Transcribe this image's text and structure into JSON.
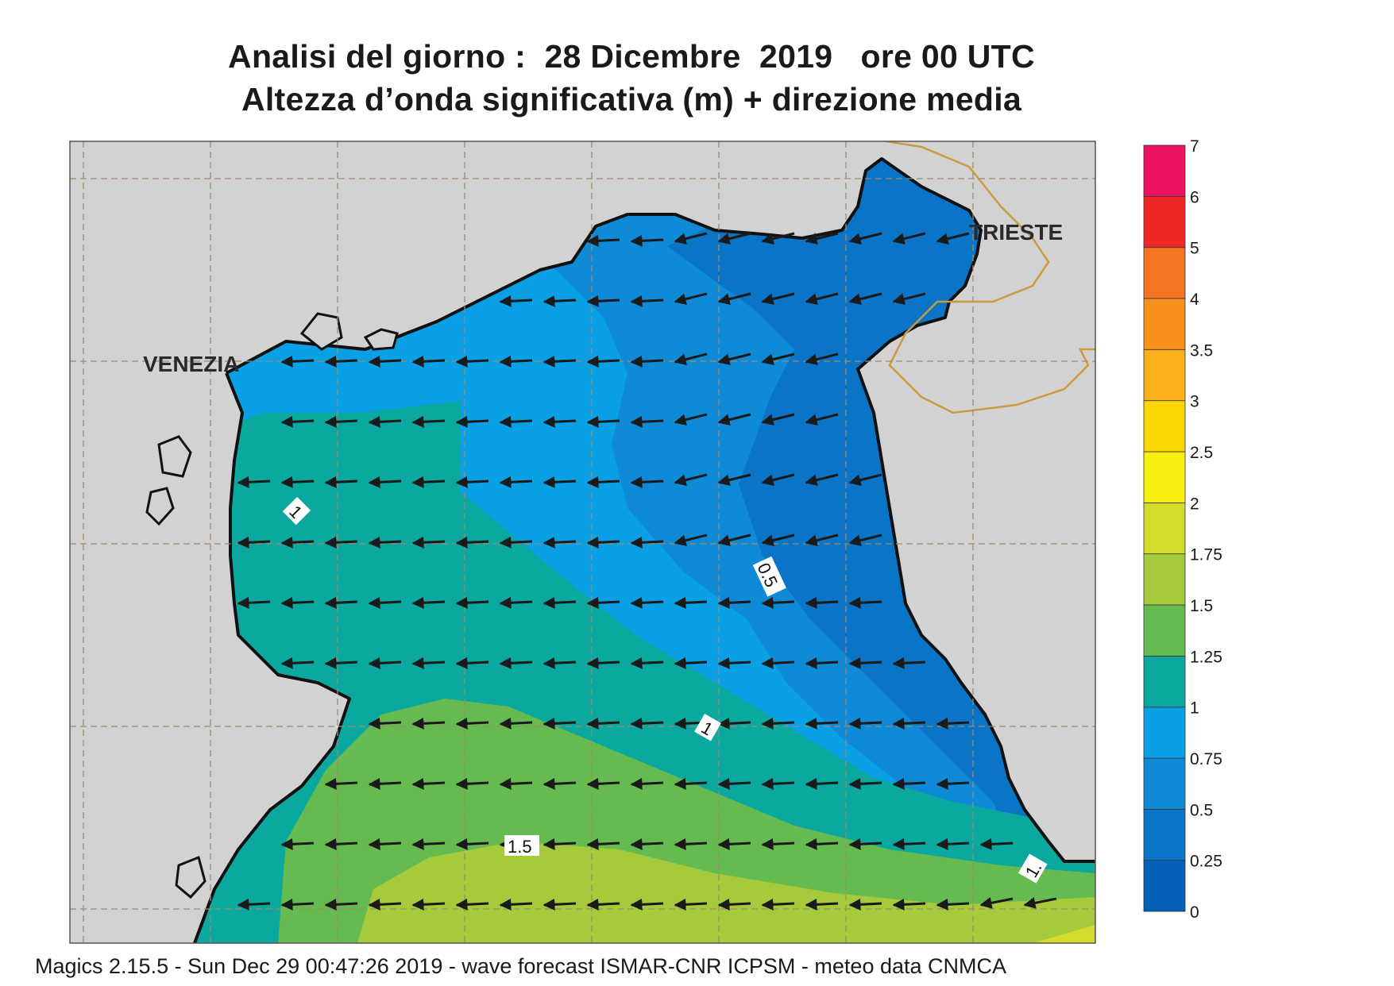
{
  "title": {
    "line1": "Analisi del giorno :  28 Dicembre  2019   ore 00 UTC",
    "line2": "Altezza d’onda significativa (m) + direzione media"
  },
  "cities": [
    {
      "name": "VENEZIA"
    },
    {
      "name": "TRIESTE"
    }
  ],
  "contour_labels": [
    "1",
    "0.5",
    "1",
    "1.5",
    "1."
  ],
  "legend": {
    "levels": [
      "0",
      "0.25",
      "0.5",
      "0.75",
      "1",
      "1.25",
      "1.5",
      "1.75",
      "2",
      "2.5",
      "3",
      "3.5",
      "4",
      "5",
      "6",
      "7"
    ],
    "colors": [
      "#0561b8",
      "#0a74c6",
      "#0f8ad6",
      "#0aa0e6",
      "#0aa89e",
      "#66bb50",
      "#a5ca3c",
      "#d2dc2a",
      "#f8ee10",
      "#fcd602",
      "#fbb01a",
      "#f8901c",
      "#f47424",
      "#ee2626",
      "#ec1260"
    ]
  },
  "colors": {
    "land": "#d2d2d2",
    "coast": "#111111",
    "grid": "#a08a6a",
    "border": "#c99a3e",
    "arrow": "#1a1a1a"
  },
  "footer": "Magics 2.15.5 - Sun Dec 29 00:47:26 2019 - wave forecast  ISMAR-CNR  ICPSM - meteo data   CNMCA"
}
